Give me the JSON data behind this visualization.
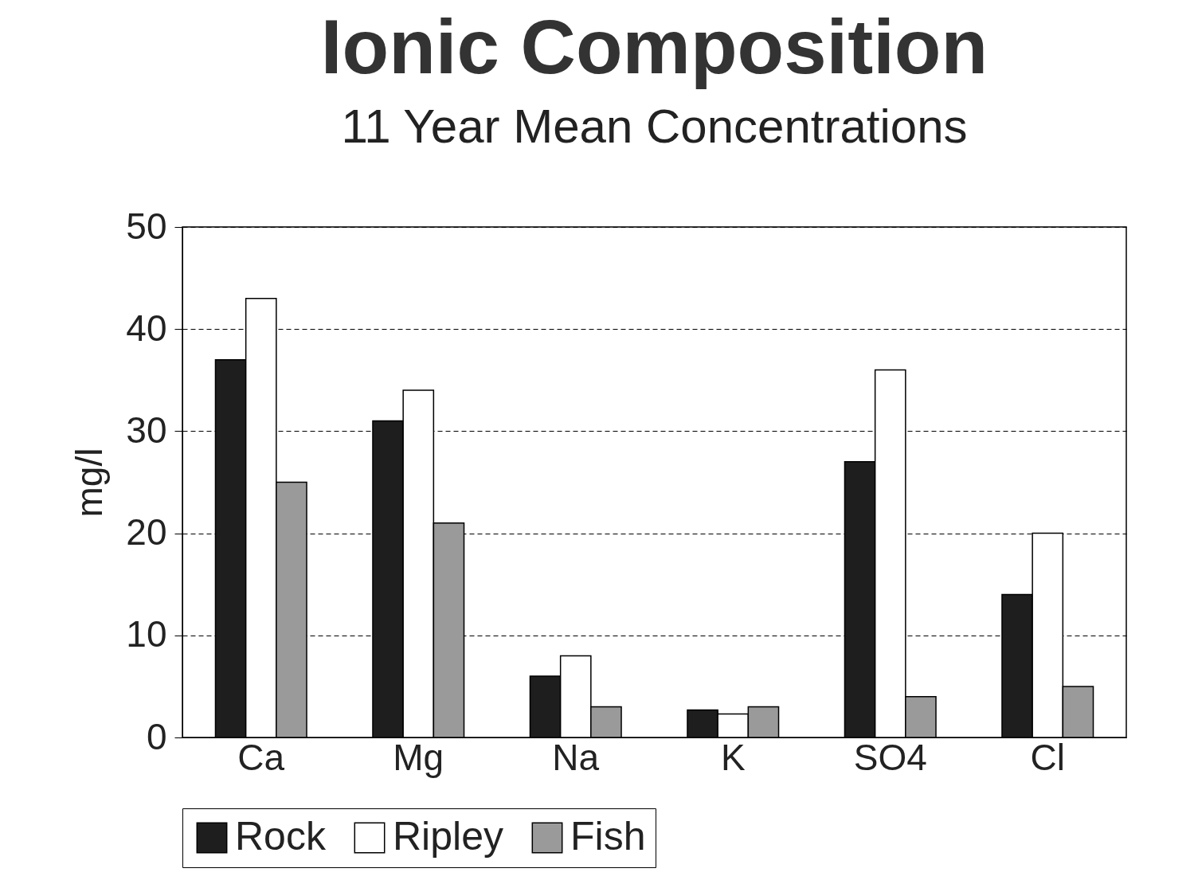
{
  "chart_data": {
    "type": "bar",
    "title": "Ionic Composition",
    "subtitle": "11 Year Mean Concentrations",
    "ylabel": "mg/l",
    "categories": [
      "Ca",
      "Mg",
      "Na",
      "K",
      "SO4",
      "Cl"
    ],
    "series": [
      {
        "name": "Rock",
        "color": "#1e1e1e",
        "values": [
          37,
          31,
          6,
          2.7,
          27,
          14
        ]
      },
      {
        "name": "Ripley",
        "color": "#ffffff",
        "values": [
          43,
          34,
          8,
          2.3,
          36,
          20
        ]
      },
      {
        "name": "Fish",
        "color": "#9a9a9a",
        "values": [
          25,
          21,
          3,
          3,
          4,
          5
        ]
      }
    ],
    "ylim": [
      0,
      50
    ],
    "yticks": [
      0,
      10,
      20,
      30,
      40,
      50
    ],
    "grid": "y",
    "legend": "bottom"
  }
}
